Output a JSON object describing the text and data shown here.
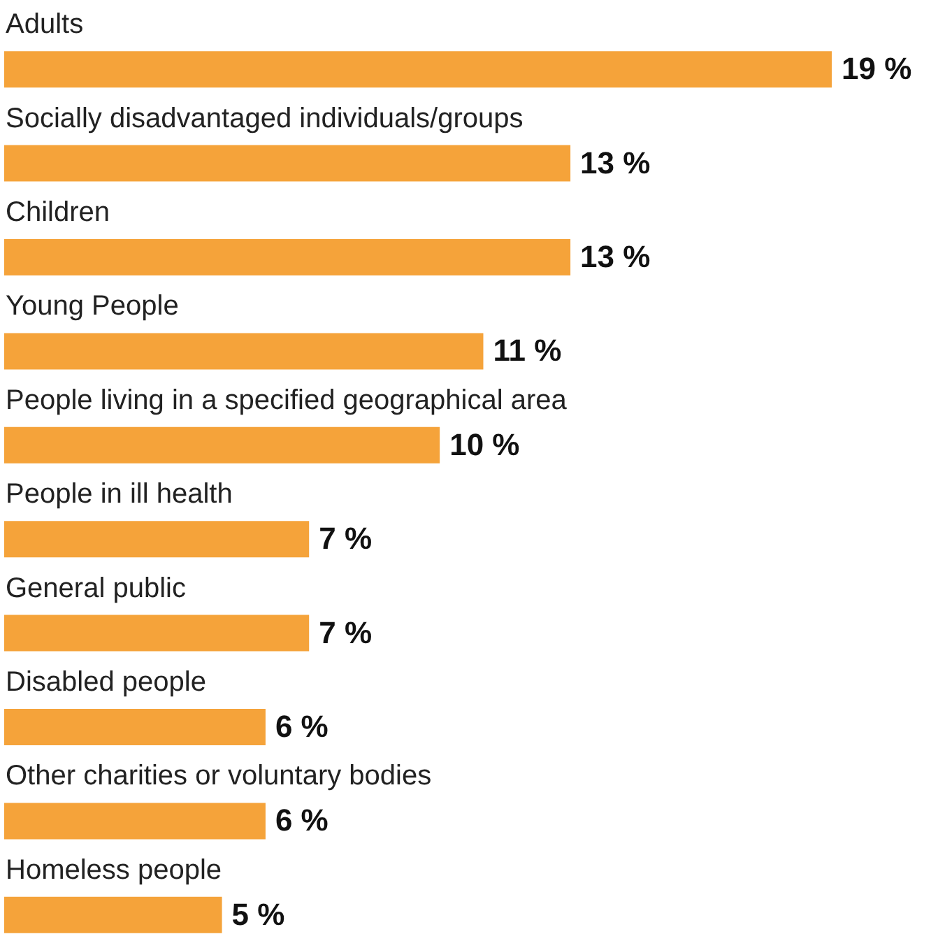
{
  "chart_data": {
    "type": "bar",
    "orientation": "horizontal",
    "color": "#f5a33a",
    "categories": [
      "Adults",
      "Socially disadvantaged individuals/groups",
      "Children",
      "Young People",
      "People living in a specified geographical area",
      "People in ill health",
      "General public",
      "Disabled people",
      "Other charities or voluntary bodies",
      "Homeless people"
    ],
    "values": [
      19,
      13,
      13,
      11,
      10,
      7,
      7,
      6,
      6,
      5
    ],
    "value_labels": [
      "19 %",
      "13 %",
      "13 %",
      "11 %",
      "10 %",
      "7 %",
      "7 %",
      "6 %",
      "6 %",
      "5 %"
    ]
  }
}
